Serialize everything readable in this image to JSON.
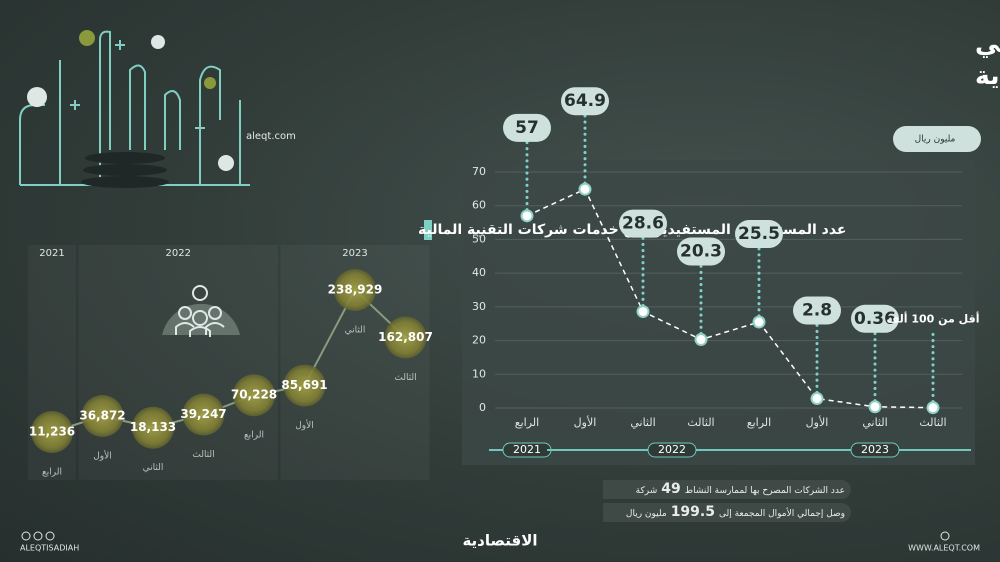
{
  "site": "aleqt.com",
  "footer": {
    "handle": "ALEQTISADIAH",
    "website": "WWW.ALEQT.COM",
    "logo": "الاقتصادية"
  },
  "notes": [
    {
      "before": "عدد الشركات المصرح بها لممارسة النشاط",
      "number": "49",
      "after": "شركة"
    },
    {
      "before": "وصل إجمالي الأموال المجمعة إلى",
      "number": "199.5",
      "after": "مليون ريال"
    }
  ],
  "chart_data": [
    {
      "type": "line",
      "marker": "dot",
      "title": [
        "الأموال المجمعة لشركات التمويل الجماعي",
        "في السعودية"
      ],
      "unit_label": "مليون ريال",
      "groups": [
        {
          "name": "2021",
          "categories": [
            "الرابع"
          ]
        },
        {
          "name": "2022",
          "categories": [
            "الأول",
            "الثاني",
            "الثالث",
            "الرابع"
          ]
        },
        {
          "name": "2023",
          "categories": [
            "الأول",
            "الثاني",
            "الثالث"
          ]
        }
      ],
      "values": [
        57,
        64.9,
        28.6,
        20.3,
        25.5,
        2.8,
        0.36,
        0.1
      ],
      "value_labels": [
        "57",
        "64.9",
        "28.6",
        "20.3",
        "25.5",
        "2.8",
        "0.36",
        "أقل من 100 ألف"
      ],
      "ylim": [
        0,
        70
      ],
      "yticks": [
        0,
        10,
        20,
        30,
        40,
        50,
        60,
        70
      ],
      "grid": true,
      "color": "#ffffff"
    },
    {
      "type": "line",
      "marker": "bubble",
      "title": "عدد المستثمرين المستفيدين من خدمات شركات التقنية المالية",
      "groups": [
        {
          "name": "2021",
          "categories": [
            "الرابع"
          ]
        },
        {
          "name": "2022",
          "categories": [
            "الأول",
            "الثاني",
            "الثالث",
            "الرابع"
          ]
        },
        {
          "name": "2023",
          "categories": [
            "الأول",
            "الثاني",
            "الثالث"
          ]
        }
      ],
      "values": [
        11236,
        36872,
        18133,
        39247,
        70228,
        85691,
        238929,
        162807
      ],
      "value_labels": [
        "11,236",
        "36,872",
        "18,133",
        "39,247",
        "70,228",
        "85,691",
        "238,929",
        "162,807"
      ],
      "color": "#8f8c3a"
    }
  ]
}
